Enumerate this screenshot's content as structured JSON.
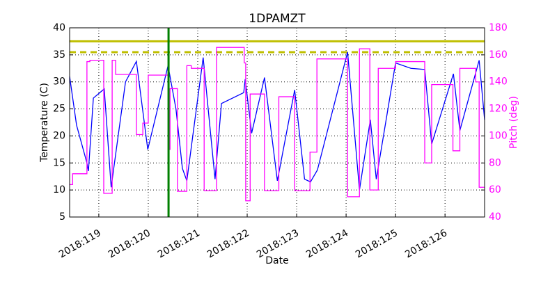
{
  "chart_data": {
    "type": "line",
    "title": "1DPAMZT",
    "xlabel": "Date",
    "ylabel": "Temperature (C)",
    "y2label": "Pitch (deg)",
    "xlim": [
      118.41,
      126.8
    ],
    "xticks": [
      {
        "value": 119,
        "label": "2018:119"
      },
      {
        "value": 120,
        "label": "2018:120"
      },
      {
        "value": 121,
        "label": "2018:121"
      },
      {
        "value": 122,
        "label": "2018:122"
      },
      {
        "value": 123,
        "label": "2018:123"
      },
      {
        "value": 124,
        "label": "2018:124"
      },
      {
        "value": 125,
        "label": "2018:125"
      },
      {
        "value": 126,
        "label": "2018:126"
      }
    ],
    "ylim": [
      5,
      40
    ],
    "yticks": [
      5,
      10,
      15,
      20,
      25,
      30,
      35,
      40
    ],
    "y2lim": [
      40,
      180
    ],
    "y2ticks": [
      40,
      60,
      80,
      100,
      120,
      140,
      160,
      180
    ],
    "y2color": "#ff00ff",
    "grid": true,
    "series": [
      {
        "color": "#0000ff",
        "axis": "y",
        "x": [
          118.41,
          118.55,
          118.76,
          118.79,
          118.89,
          119.11,
          119.25,
          119.54,
          119.76,
          119.99,
          120.4,
          120.56,
          120.69,
          120.78,
          121.11,
          121.35,
          121.48,
          121.93,
          121.96,
          122.09,
          122.35,
          122.61,
          122.96,
          123.16,
          123.28,
          123.42,
          124.03,
          124.27,
          124.49,
          124.61,
          125.0,
          125.31,
          125.59,
          125.73,
          126.17,
          126.3,
          126.69,
          126.8
        ],
        "values": [
          31,
          22,
          15,
          13.5,
          27,
          28.7,
          10.5,
          30,
          33.8,
          17.5,
          33,
          25,
          14,
          11.7,
          34.5,
          12,
          26,
          28,
          30.5,
          20.5,
          30.8,
          11.7,
          28.5,
          12,
          11.5,
          13.7,
          35.5,
          10,
          23,
          12,
          33.5,
          32.5,
          32.3,
          18.5,
          31.5,
          21,
          34,
          23
        ]
      },
      {
        "color": "#ff00ff",
        "axis": "y2",
        "drawstyle": "steps-post",
        "x": [
          118.41,
          118.47,
          118.76,
          118.82,
          119.1,
          119.27,
          119.34,
          119.76,
          119.89,
          120.0,
          120.41,
          120.44,
          120.59,
          120.78,
          120.87,
          121.13,
          121.38,
          121.94,
          121.97,
          122.06,
          122.35,
          122.64,
          122.96,
          123.27,
          123.41,
          124.03,
          124.27,
          124.48,
          124.65,
          125.0,
          125.59,
          125.73,
          126.16,
          126.3,
          126.62,
          126.69,
          126.8
        ],
        "values": [
          64,
          72,
          155,
          156,
          57.5,
          156,
          145.5,
          101,
          109.5,
          145,
          90,
          135,
          59,
          152,
          150,
          59.5,
          165.5,
          154,
          52,
          131,
          59.5,
          129,
          59.5,
          88,
          157,
          55,
          164.5,
          60,
          150,
          155,
          80,
          138,
          89,
          150,
          140,
          62,
          62
        ]
      }
    ],
    "hlines": [
      {
        "value": 37.5,
        "color": "#bfbf00",
        "style": "solid"
      },
      {
        "value": 35.5,
        "color": "#bfbf00",
        "style": "dashed"
      }
    ],
    "vlines": [
      {
        "value": 120.41,
        "color": "#008000"
      }
    ]
  }
}
